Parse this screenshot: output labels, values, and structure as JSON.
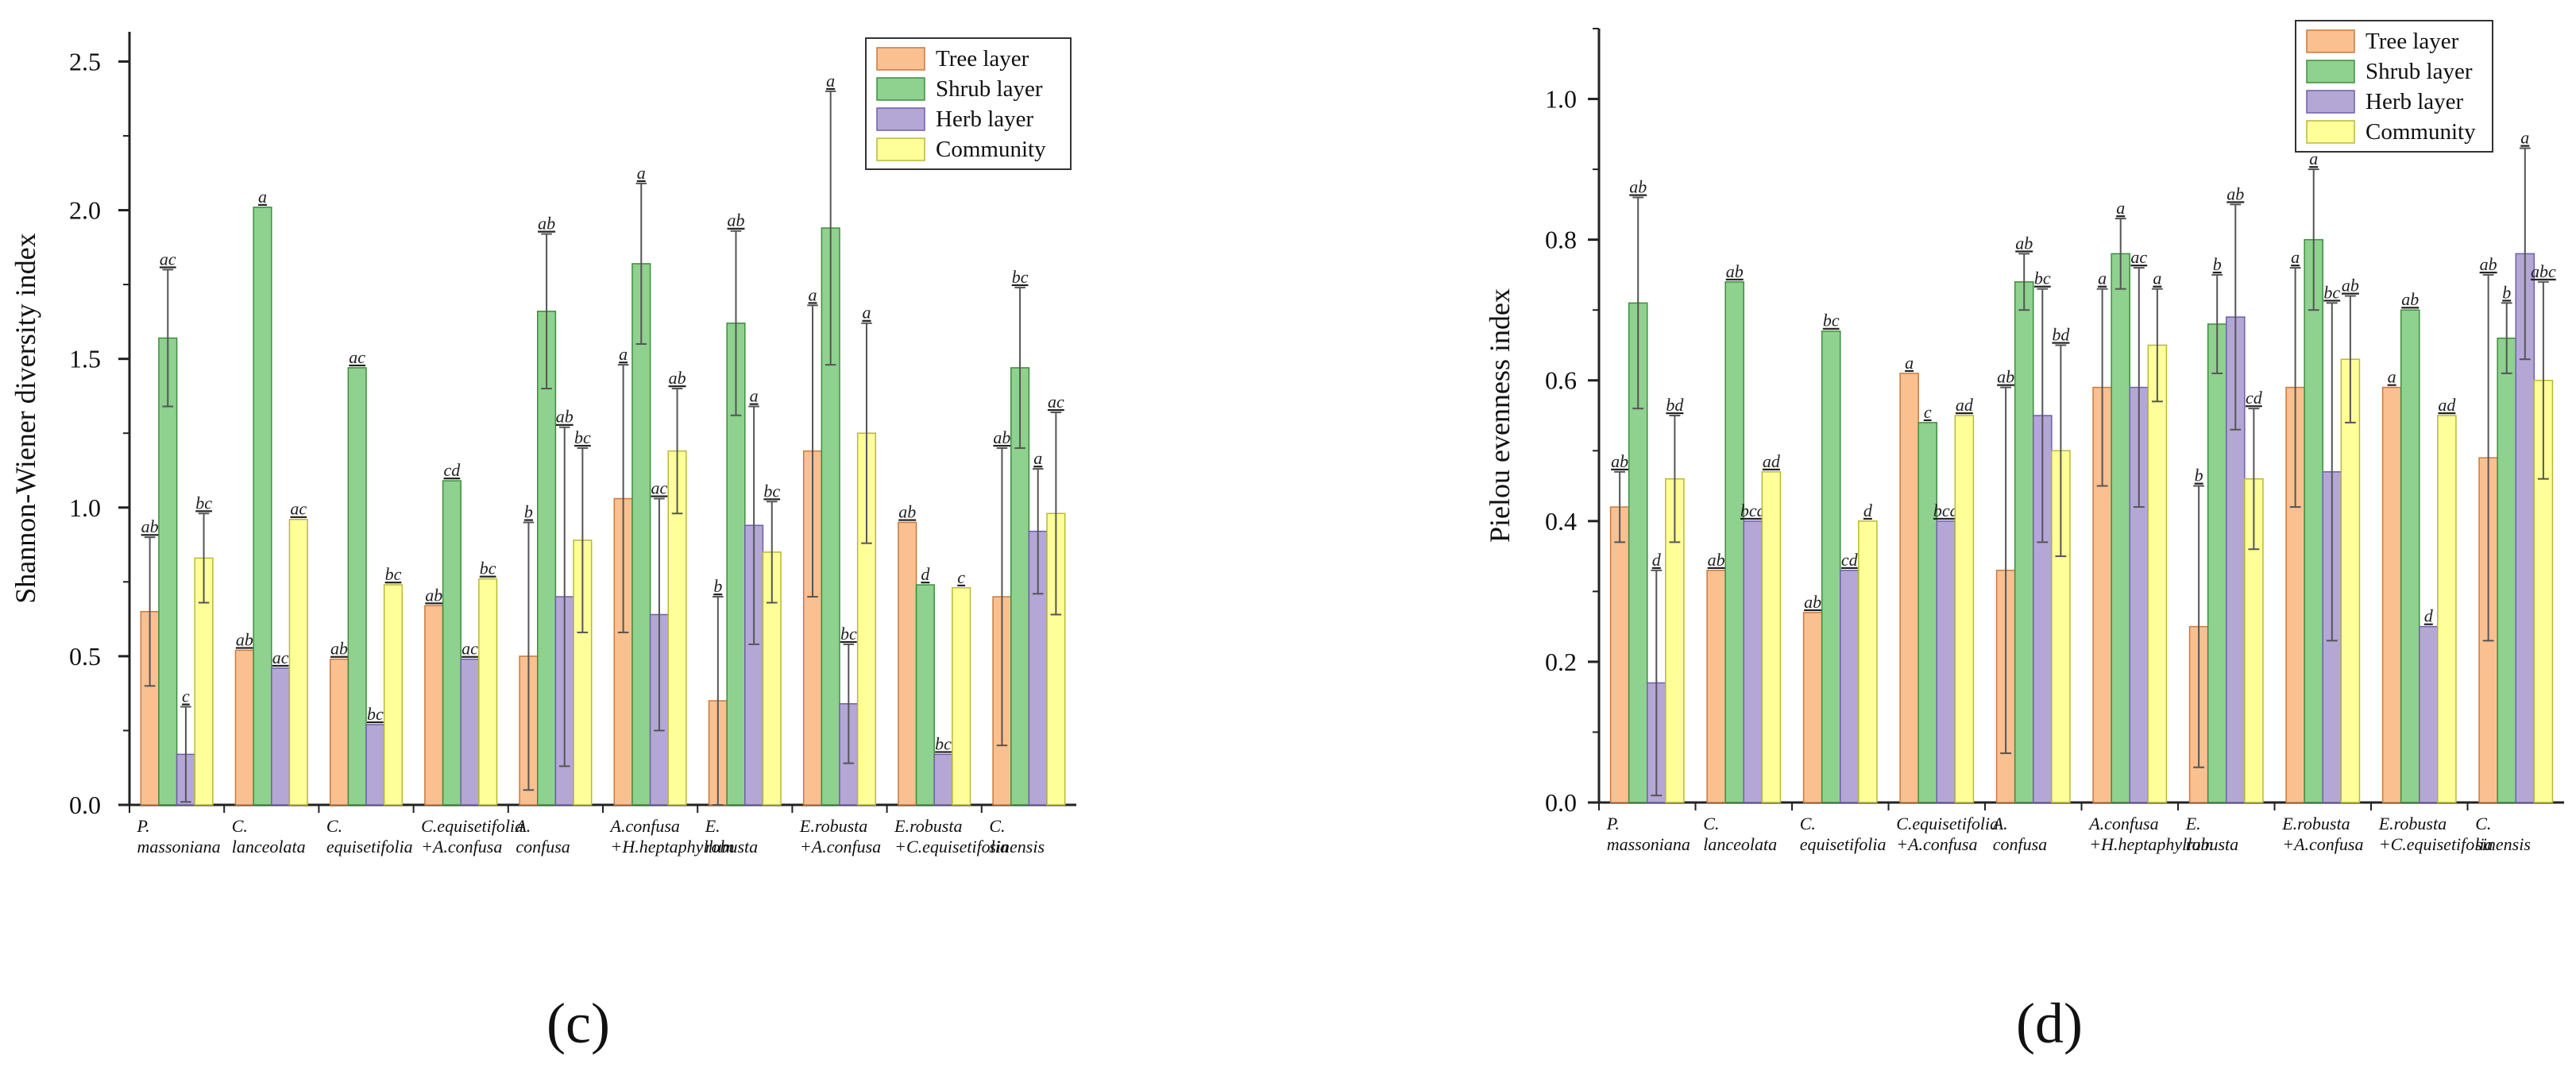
{
  "legend": [
    "Tree layer",
    "Shrub layer",
    "Herb layer",
    "Community"
  ],
  "colors": {
    "tree_fill": "#FAC090",
    "tree_stroke": "#C87A3E",
    "shrub_fill": "#8FD18F",
    "shrub_stroke": "#3E8E3E",
    "herb_fill": "#B4A7D6",
    "herb_stroke": "#6E5FA8",
    "community_fill": "#FFFF99",
    "community_stroke": "#B8B83A",
    "axis": "#222222",
    "error": "#555555"
  },
  "chart_data": [
    {
      "type": "bar",
      "panel": "(c)",
      "panel_letter": "c",
      "ylabel": "Shannon-Wiener diversity index",
      "xlabel": "",
      "ylim": [
        0,
        2.6
      ],
      "yticks": [
        "0.0",
        "0.5",
        "1.0",
        "1.5",
        "2.0",
        "2.5"
      ],
      "ytick_values": [
        0,
        0.5,
        1.0,
        1.5,
        2.0,
        2.5
      ],
      "categories": [
        [
          "P.",
          "massoniana"
        ],
        [
          "C.",
          "lanceolata"
        ],
        [
          "C.",
          "equisetifolia"
        ],
        [
          "C.equisetifolia",
          "+A.confusa"
        ],
        [
          "A.",
          "confusa"
        ],
        [
          "A.confusa",
          "+H.heptaphyllum"
        ],
        [
          "E.",
          "robusta"
        ],
        [
          "E.robusta",
          "+A.confusa"
        ],
        [
          "E.robusta",
          "+C.equisetifolia"
        ],
        [
          "C.",
          "sinensis"
        ]
      ],
      "series": [
        {
          "name": "Tree layer",
          "values": [
            0.65,
            0.52,
            0.49,
            0.67,
            0.5,
            1.03,
            0.35,
            1.19,
            0.95,
            0.7
          ],
          "errors": [
            0.25,
            0,
            0,
            0,
            0.45,
            0.45,
            0.35,
            0.49,
            0,
            0.5
          ],
          "labels": [
            "ab",
            "ab",
            "ab",
            "ab",
            "b",
            "a",
            "b",
            "a",
            "ab",
            "ab"
          ]
        },
        {
          "name": "Shrub layer",
          "values": [
            1.57,
            2.01,
            1.47,
            1.09,
            1.66,
            1.82,
            1.62,
            1.94,
            0.74,
            1.47
          ],
          "errors": [
            0.23,
            0,
            0,
            0,
            0.26,
            0.27,
            0.31,
            0.46,
            0,
            0.27
          ],
          "labels": [
            "ac",
            "a",
            "ac",
            "cd",
            "ab",
            "a",
            "ab",
            "a",
            "d",
            "bc"
          ]
        },
        {
          "name": "Herb layer",
          "values": [
            0.17,
            0.46,
            0.27,
            0.49,
            0.7,
            0.64,
            0.94,
            0.34,
            0.17,
            0.92
          ],
          "errors": [
            0.16,
            0,
            0,
            0,
            0.57,
            0.39,
            0.4,
            0.2,
            0,
            0.21
          ],
          "labels": [
            "c",
            "ac",
            "bc",
            "ac",
            "ab",
            "ac",
            "a",
            "bc",
            "bc",
            "a"
          ]
        },
        {
          "name": "Community",
          "values": [
            0.83,
            0.96,
            0.74,
            0.76,
            0.89,
            1.19,
            0.85,
            1.25,
            0.73,
            0.98
          ],
          "errors": [
            0.15,
            0,
            0,
            0,
            0.31,
            0.21,
            0.17,
            0.37,
            0,
            0.34
          ],
          "labels": [
            "bc",
            "ac",
            "bc",
            "bc",
            "bc",
            "ab",
            "bc",
            "a",
            "c",
            "ac"
          ]
        }
      ]
    },
    {
      "type": "bar",
      "panel": "(d)",
      "panel_letter": "d",
      "ylabel": "Pielou evenness index",
      "xlabel": "",
      "ylim": [
        0,
        1.1
      ],
      "yticks": [
        "0.0",
        "0.2",
        "0.4",
        "0.6",
        "0.8",
        "1.0"
      ],
      "ytick_values": [
        0,
        0.2,
        0.4,
        0.6,
        0.8,
        1.0
      ],
      "categories": [
        [
          "P.",
          "massoniana"
        ],
        [
          "C.",
          "lanceolata"
        ],
        [
          "C.",
          "equisetifolia"
        ],
        [
          "C.equisetifolia",
          "+A.confusa"
        ],
        [
          "A.",
          "confusa"
        ],
        [
          "A.confusa",
          "+H.heptaphyllum"
        ],
        [
          "E.",
          "robusta"
        ],
        [
          "E.robusta",
          "+A.confusa"
        ],
        [
          "E.robusta",
          "+C.equisetifolia"
        ],
        [
          "C.",
          "sinensis"
        ]
      ],
      "series": [
        {
          "name": "Tree layer",
          "values": [
            0.42,
            0.33,
            0.27,
            0.61,
            0.33,
            0.59,
            0.25,
            0.59,
            0.59,
            0.49
          ],
          "errors": [
            0.05,
            0,
            0,
            0,
            0.26,
            0.14,
            0.2,
            0.17,
            0,
            0.26
          ],
          "labels": [
            "ab",
            "ab",
            "ab",
            "a",
            "ab",
            "a",
            "b",
            "a",
            "a",
            "ab"
          ]
        },
        {
          "name": "Shrub layer",
          "values": [
            0.71,
            0.74,
            0.67,
            0.54,
            0.74,
            0.78,
            0.68,
            0.8,
            0.7,
            0.66
          ],
          "errors": [
            0.15,
            0,
            0,
            0,
            0.04,
            0.05,
            0.07,
            0.1,
            0,
            0.05
          ],
          "labels": [
            "ab",
            "ab",
            "bc",
            "c",
            "ab",
            "a",
            "b",
            "a",
            "ab",
            "b"
          ]
        },
        {
          "name": "Herb layer",
          "values": [
            0.17,
            0.4,
            0.33,
            0.4,
            0.55,
            0.59,
            0.69,
            0.47,
            0.25,
            0.78
          ],
          "errors": [
            0.16,
            0,
            0,
            0,
            0.18,
            0.17,
            0.16,
            0.24,
            0,
            0.15
          ],
          "labels": [
            "d",
            "bcd",
            "cd",
            "bcd",
            "bc",
            "ac",
            "ab",
            "bc",
            "d",
            "a"
          ]
        },
        {
          "name": "Community",
          "values": [
            0.46,
            0.47,
            0.4,
            0.55,
            0.5,
            0.65,
            0.46,
            0.63,
            0.55,
            0.6
          ],
          "errors": [
            0.09,
            0,
            0,
            0,
            0.15,
            0.08,
            0.1,
            0.09,
            0,
            0.14
          ],
          "labels": [
            "bd",
            "ad",
            "d",
            "ad",
            "bd",
            "a",
            "cd",
            "ab",
            "ad",
            "abc"
          ]
        }
      ]
    }
  ]
}
